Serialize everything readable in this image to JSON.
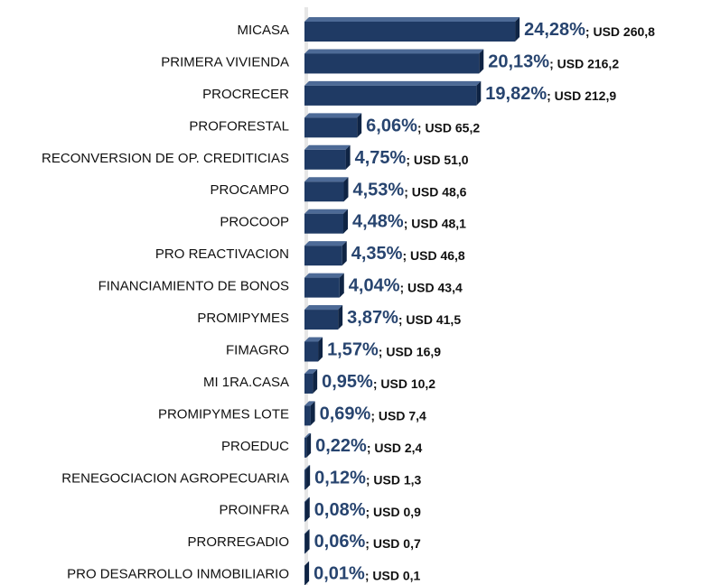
{
  "chart_data": {
    "type": "bar",
    "orientation": "horizontal",
    "categories": [
      "MICASA",
      "PRIMERA VIVIENDA",
      "PROCRECER",
      "PROFORESTAL",
      "RECONVERSION DE OP. CREDITICIAS",
      "PROCAMPO",
      "PROCOOP",
      "PRO REACTIVACION",
      "FINANCIAMIENTO DE BONOS",
      "PROMIPYMES",
      "FIMAGRO",
      "MI 1RA.CASA",
      "PROMIPYMES LOTE",
      "PROEDUC",
      "RENEGOCIACION AGROPECUARIA",
      "PROINFRA",
      "PRORREGADIO",
      "PRO DESARROLLO INMOBILIARIO"
    ],
    "values": [
      24.28,
      20.13,
      19.82,
      6.06,
      4.75,
      4.53,
      4.48,
      4.35,
      4.04,
      3.87,
      1.57,
      0.95,
      0.69,
      0.22,
      0.12,
      0.08,
      0.06,
      0.01
    ],
    "value_labels": [
      "24,28%",
      "20,13%",
      "19,82%",
      "6,06%",
      "4,75%",
      "4,53%",
      "4,48%",
      "4,35%",
      "4,04%",
      "3,87%",
      "1,57%",
      "0,95%",
      "0,69%",
      "0,22%",
      "0,12%",
      "0,08%",
      "0,06%",
      "0,01%"
    ],
    "usd_labels": [
      "; USD 260,8",
      "; USD 216,2",
      "; USD 212,9",
      "; USD 65,2",
      "; USD 51,0",
      "; USD 48,6",
      "; USD 48,1",
      "; USD 46,8",
      "; USD 43,4",
      "; USD 41,5",
      "; USD 16,9",
      "; USD 10,2",
      "; USD 7,4",
      "; USD 2,4",
      "; USD 1,3",
      "; USD 0,9",
      "; USD 0,7",
      "; USD 0,1"
    ],
    "color": "#1f3a64",
    "xlim": [
      0,
      25
    ]
  }
}
